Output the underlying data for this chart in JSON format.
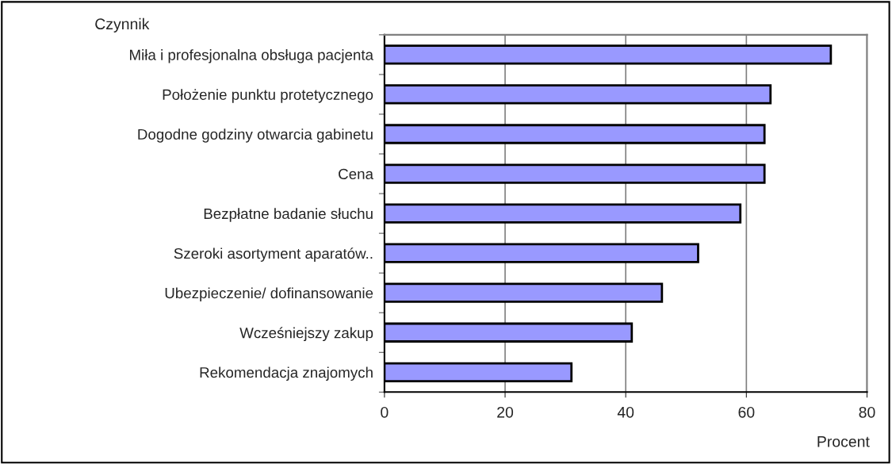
{
  "chart_data": {
    "type": "bar",
    "orientation": "horizontal",
    "ylabel": "Czynnik",
    "xlabel": "Procent",
    "categories": [
      "Miła i profesjonalna obsługa pacjenta",
      "Położenie punktu protetycznego",
      "Dogodne godziny otwarcia gabinetu",
      "Cena",
      "Bezpłatne badanie słuchu",
      "Szeroki asortyment aparatów..",
      "Ubezpieczenie/ dofinansowanie",
      "Wcześniejszy zakup",
      "Rekomendacja znajomych"
    ],
    "values": [
      74,
      64,
      63,
      63,
      59,
      52,
      46,
      41,
      31
    ],
    "color": "#9999ff",
    "xlim": [
      0,
      80
    ],
    "xticks": [
      0,
      20,
      40,
      60,
      80
    ],
    "grid": "x",
    "legend": false
  }
}
